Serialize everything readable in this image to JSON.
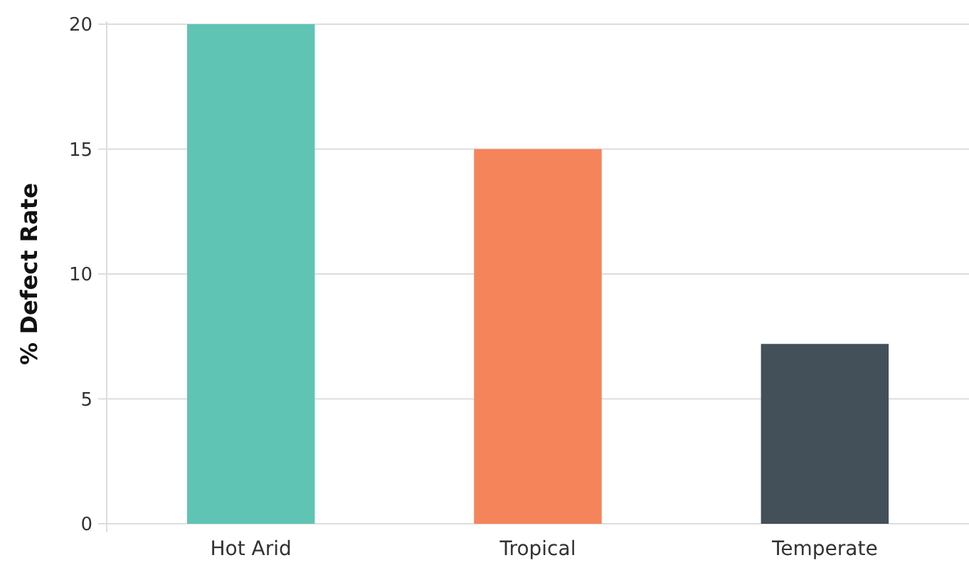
{
  "chart_data": {
    "type": "bar",
    "ylabel": "% Defect Rate",
    "categories": [
      "Hot Arid",
      "Tropical",
      "Temperate"
    ],
    "values": [
      20,
      15,
      7.2
    ],
    "colors": [
      "#5fc4b4",
      "#f5845b",
      "#434f59"
    ],
    "ylim": [
      0,
      20
    ],
    "yticks": [
      0,
      5,
      10,
      15,
      20
    ],
    "grid": "y"
  }
}
